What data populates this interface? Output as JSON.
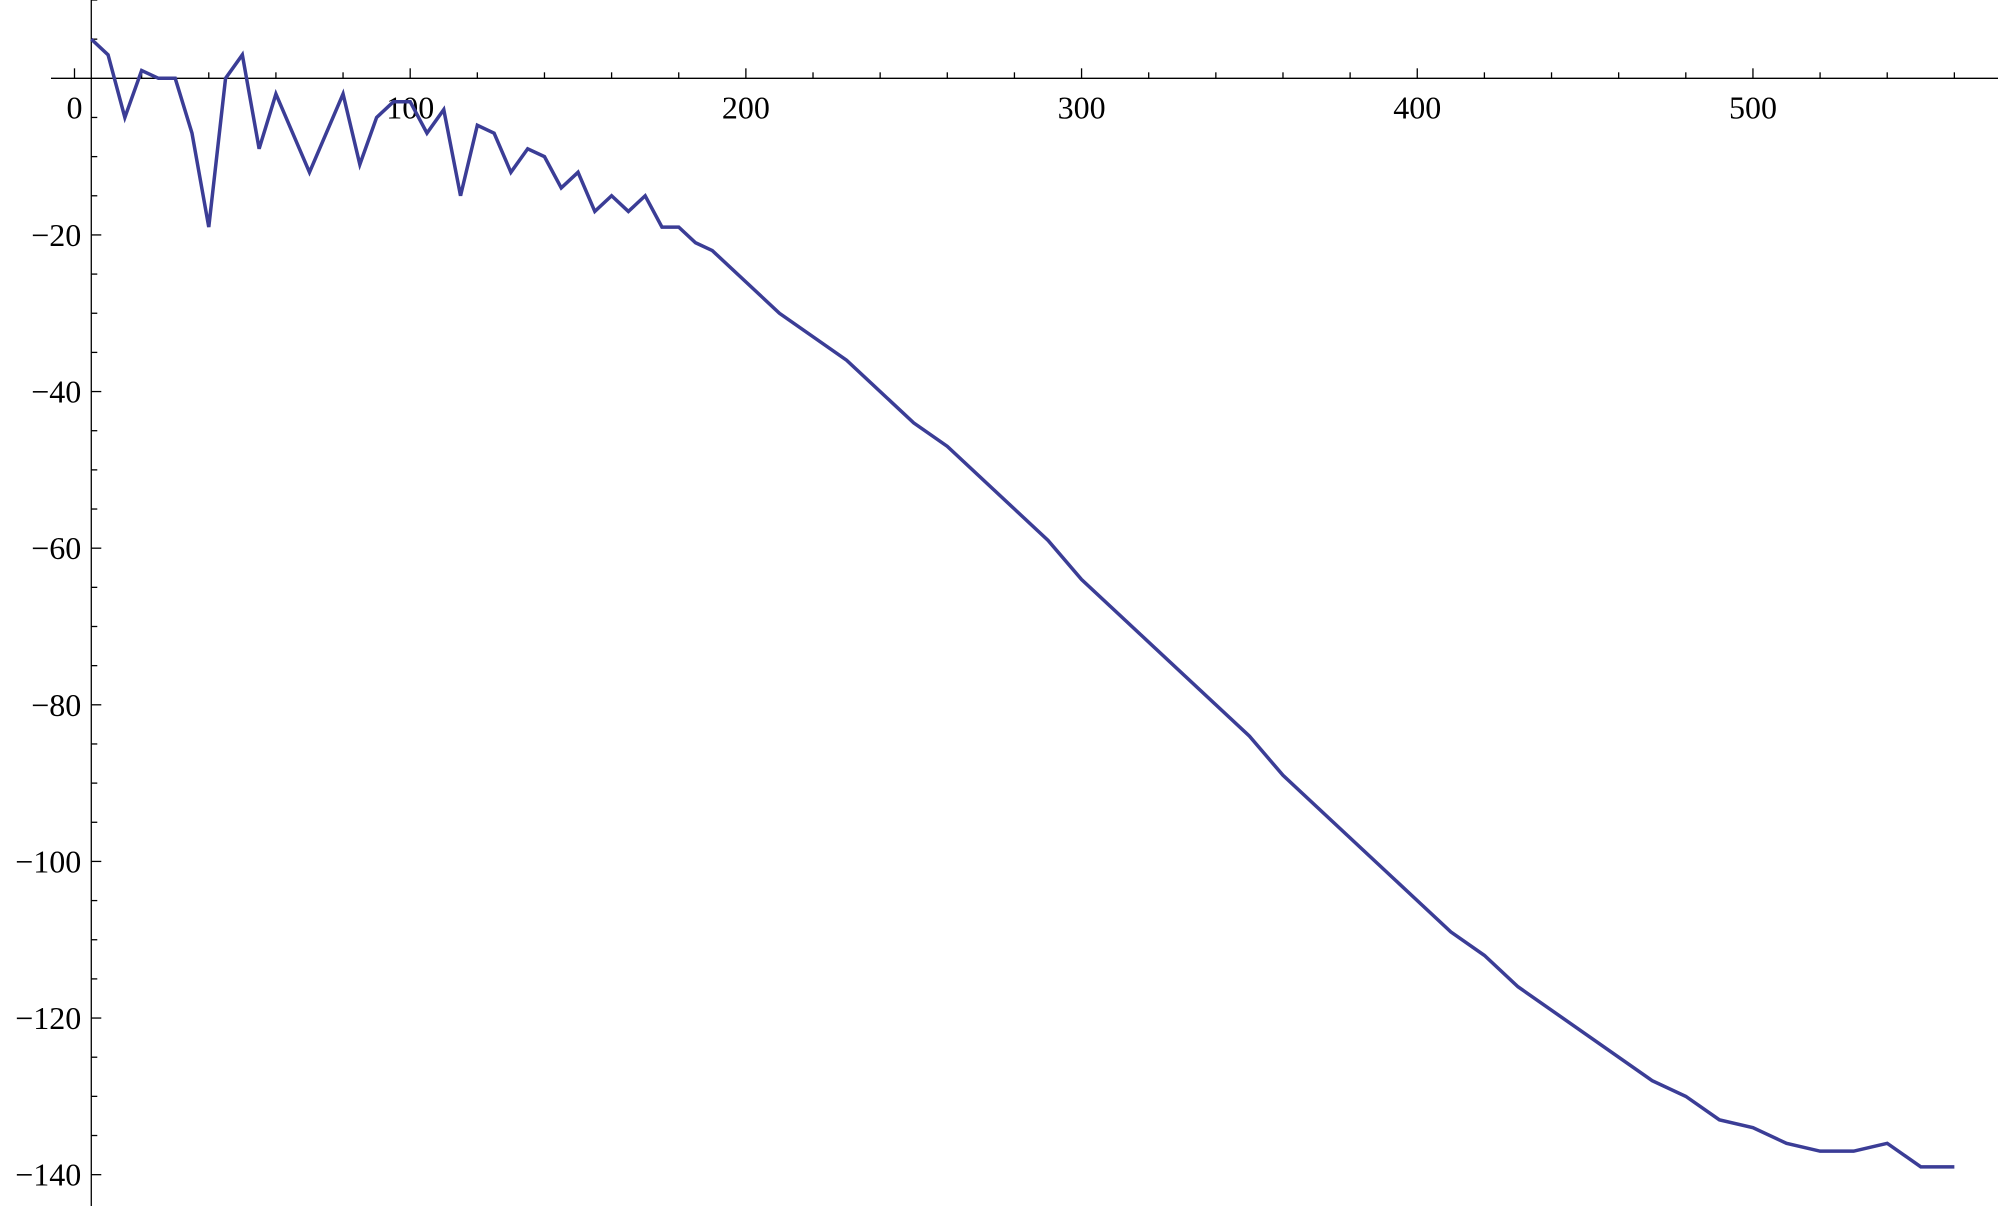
{
  "chart_data": {
    "type": "line",
    "x": [
      5,
      10,
      15,
      20,
      25,
      30,
      35,
      40,
      45,
      50,
      55,
      60,
      70,
      80,
      85,
      90,
      95,
      100,
      105,
      110,
      115,
      120,
      125,
      130,
      135,
      140,
      145,
      150,
      155,
      160,
      165,
      170,
      175,
      180,
      185,
      190,
      210,
      230,
      250,
      260,
      280,
      290,
      300,
      350,
      360,
      410,
      420,
      430,
      470,
      480,
      490,
      500,
      510,
      520,
      530,
      540,
      550,
      560
    ],
    "series": [
      {
        "color": "#3b3d96",
        "values": [
          5,
          3,
          -5,
          1,
          0,
          0,
          -7,
          -19,
          0,
          3,
          -9,
          -2,
          -12,
          -2,
          -11,
          -5,
          -3,
          -3,
          -7,
          -4,
          -15,
          -6,
          -7,
          -12,
          -9,
          -10,
          -14,
          -12,
          -17,
          -15,
          -17,
          -15,
          -19,
          -19,
          -21,
          -22,
          -30,
          -36,
          -44,
          -47,
          -55,
          -59,
          -64,
          -84,
          -89,
          -109,
          -112,
          -116,
          -128,
          -130,
          -133,
          -134,
          -136,
          -137,
          -137,
          -136,
          -139,
          -139
        ]
      }
    ],
    "xlim": [
      -7,
      573
    ],
    "ylim": [
      -144,
      10
    ],
    "xticks": [
      0,
      100,
      200,
      300,
      400,
      500
    ],
    "xminorticks": [
      20,
      40,
      60,
      80,
      120,
      140,
      160,
      180,
      220,
      240,
      260,
      280,
      320,
      340,
      360,
      380,
      420,
      440,
      460,
      480,
      520,
      540,
      560
    ],
    "yticks": [
      {
        "value": -140,
        "label": "−140"
      },
      {
        "value": -120,
        "label": "−120"
      },
      {
        "value": -100,
        "label": "−100"
      },
      {
        "value": -80,
        "label": "−80"
      },
      {
        "value": -60,
        "label": "−60"
      },
      {
        "value": -40,
        "label": "−40"
      },
      {
        "value": -20,
        "label": "−20"
      }
    ],
    "yminorticks": [
      -135,
      -130,
      -125,
      -115,
      -110,
      -105,
      -95,
      -90,
      -85,
      -75,
      -70,
      -65,
      -55,
      -50,
      -45,
      -35,
      -30,
      -25,
      -15,
      -10,
      -5,
      5,
      10
    ]
  }
}
